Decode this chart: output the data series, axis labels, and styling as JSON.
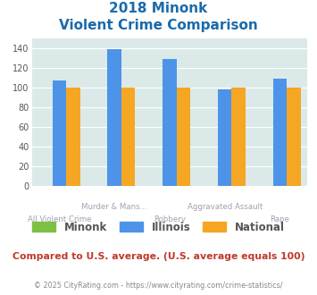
{
  "title_line1": "2018 Minonk",
  "title_line2": "Violent Crime Comparison",
  "cat_labels_row1": [
    "",
    "Murder & Mans...",
    "",
    "Aggravated Assault",
    ""
  ],
  "cat_labels_row2": [
    "All Violent Crime",
    "",
    "Robbery",
    "",
    "Rape"
  ],
  "minonk": [
    0,
    0,
    0,
    0,
    0
  ],
  "illinois": [
    107,
    139,
    129,
    98,
    109
  ],
  "national": [
    100,
    100,
    100,
    100,
    100
  ],
  "minonk_color": "#7dc142",
  "illinois_color": "#4d94e8",
  "national_color": "#f5a623",
  "ylim": [
    0,
    150
  ],
  "yticks": [
    0,
    20,
    40,
    60,
    80,
    100,
    120,
    140
  ],
  "bg_color": "#dce9e9",
  "title_color": "#1a6aab",
  "xlabel_color": "#a0a0b0",
  "footer_text": "Compared to U.S. average. (U.S. average equals 100)",
  "footer_color": "#c0392b",
  "credit_text": "© 2025 CityRating.com - https://www.cityrating.com/crime-statistics/",
  "credit_color": "#888888",
  "bar_width": 0.25
}
